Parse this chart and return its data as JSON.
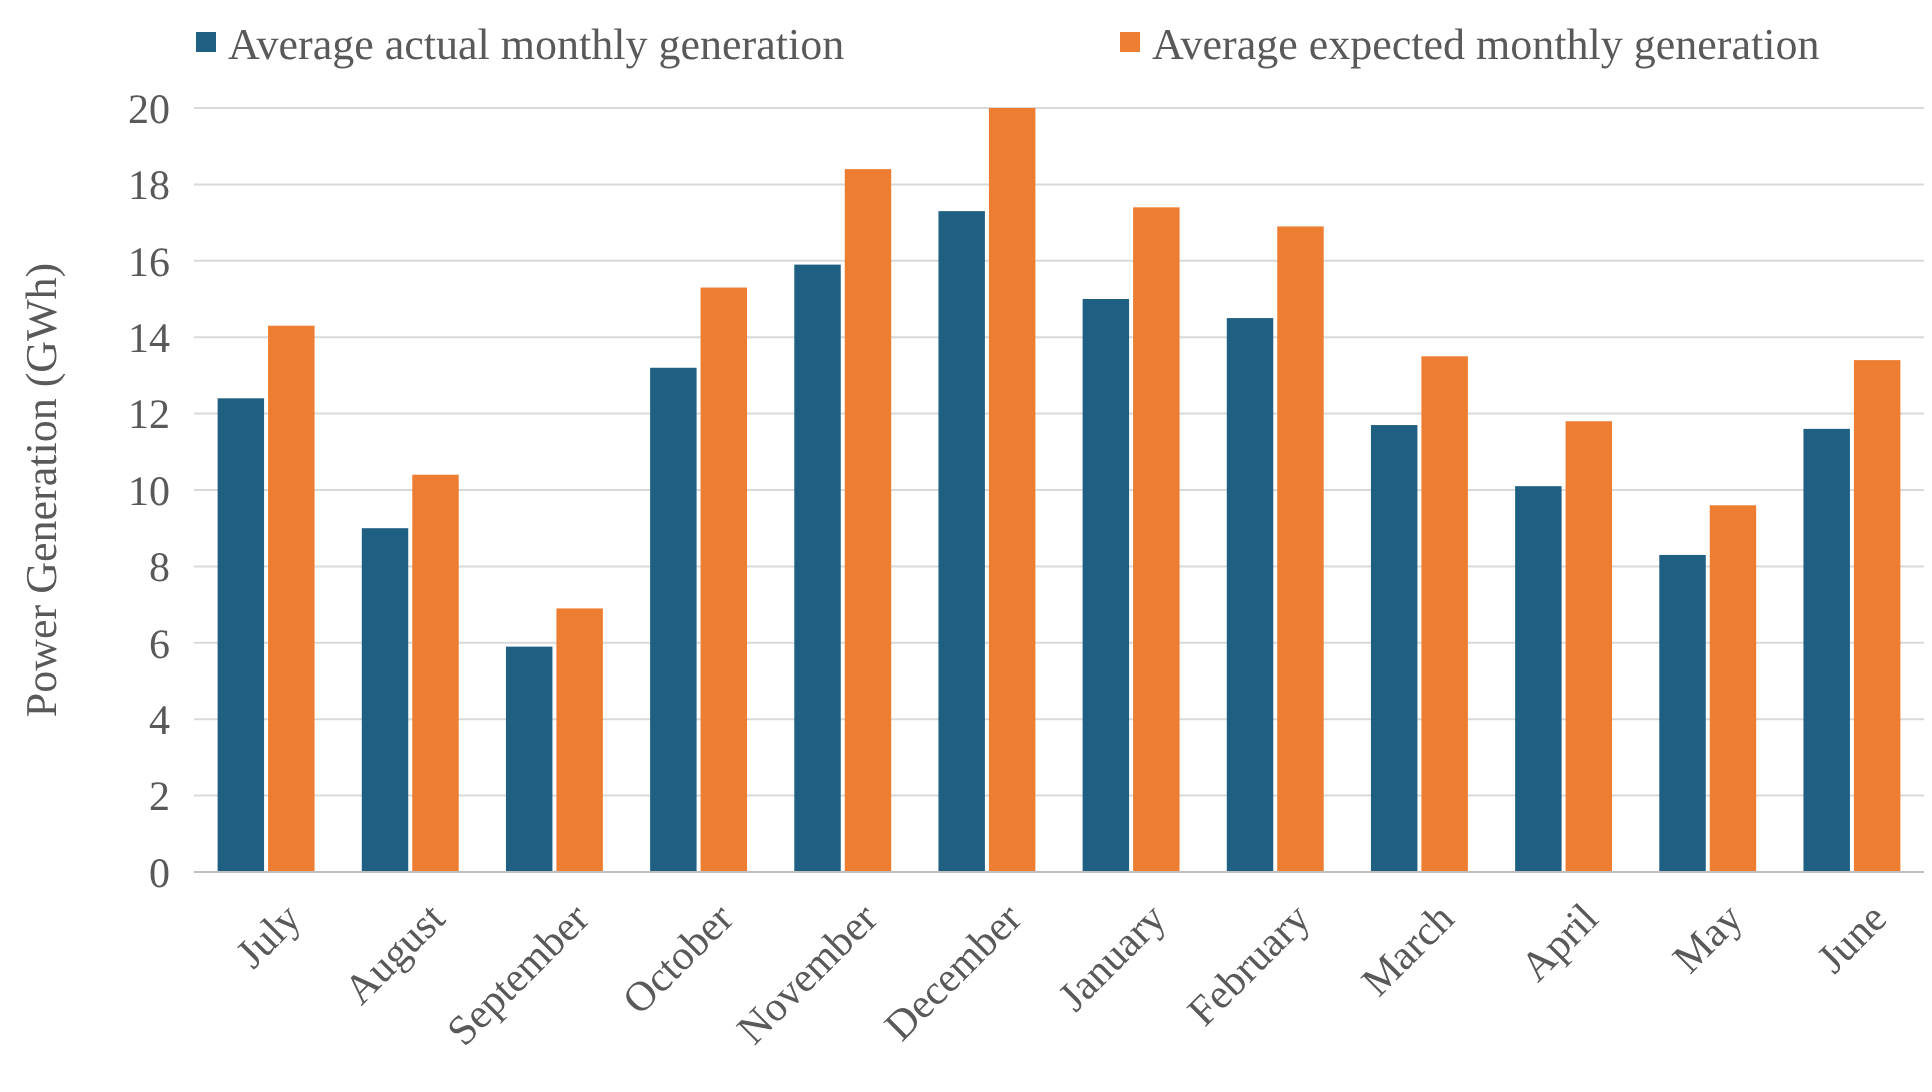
{
  "chart_data": {
    "type": "bar",
    "ylabel": "Power Generation (GWh)",
    "categories": [
      "July",
      "August",
      "September",
      "October",
      "November",
      "December",
      "January",
      "February",
      "March",
      "April",
      "May",
      "June"
    ],
    "series": [
      {
        "name": "Average actual monthly generation",
        "color": "#1f5f82",
        "values": [
          12.4,
          9.0,
          5.9,
          13.2,
          15.9,
          17.3,
          15.0,
          14.5,
          11.7,
          10.1,
          8.3,
          11.6
        ]
      },
      {
        "name": "Average expected monthly generation",
        "color": "#ed7d31",
        "values": [
          14.3,
          10.4,
          6.9,
          15.3,
          18.4,
          20.0,
          17.4,
          16.9,
          13.5,
          11.8,
          9.6,
          13.4
        ]
      }
    ],
    "ylim": [
      0,
      20
    ],
    "yticks": [
      0,
      2,
      4,
      6,
      8,
      10,
      12,
      14,
      16,
      18,
      20
    ],
    "grid": "y",
    "legend": "top"
  }
}
